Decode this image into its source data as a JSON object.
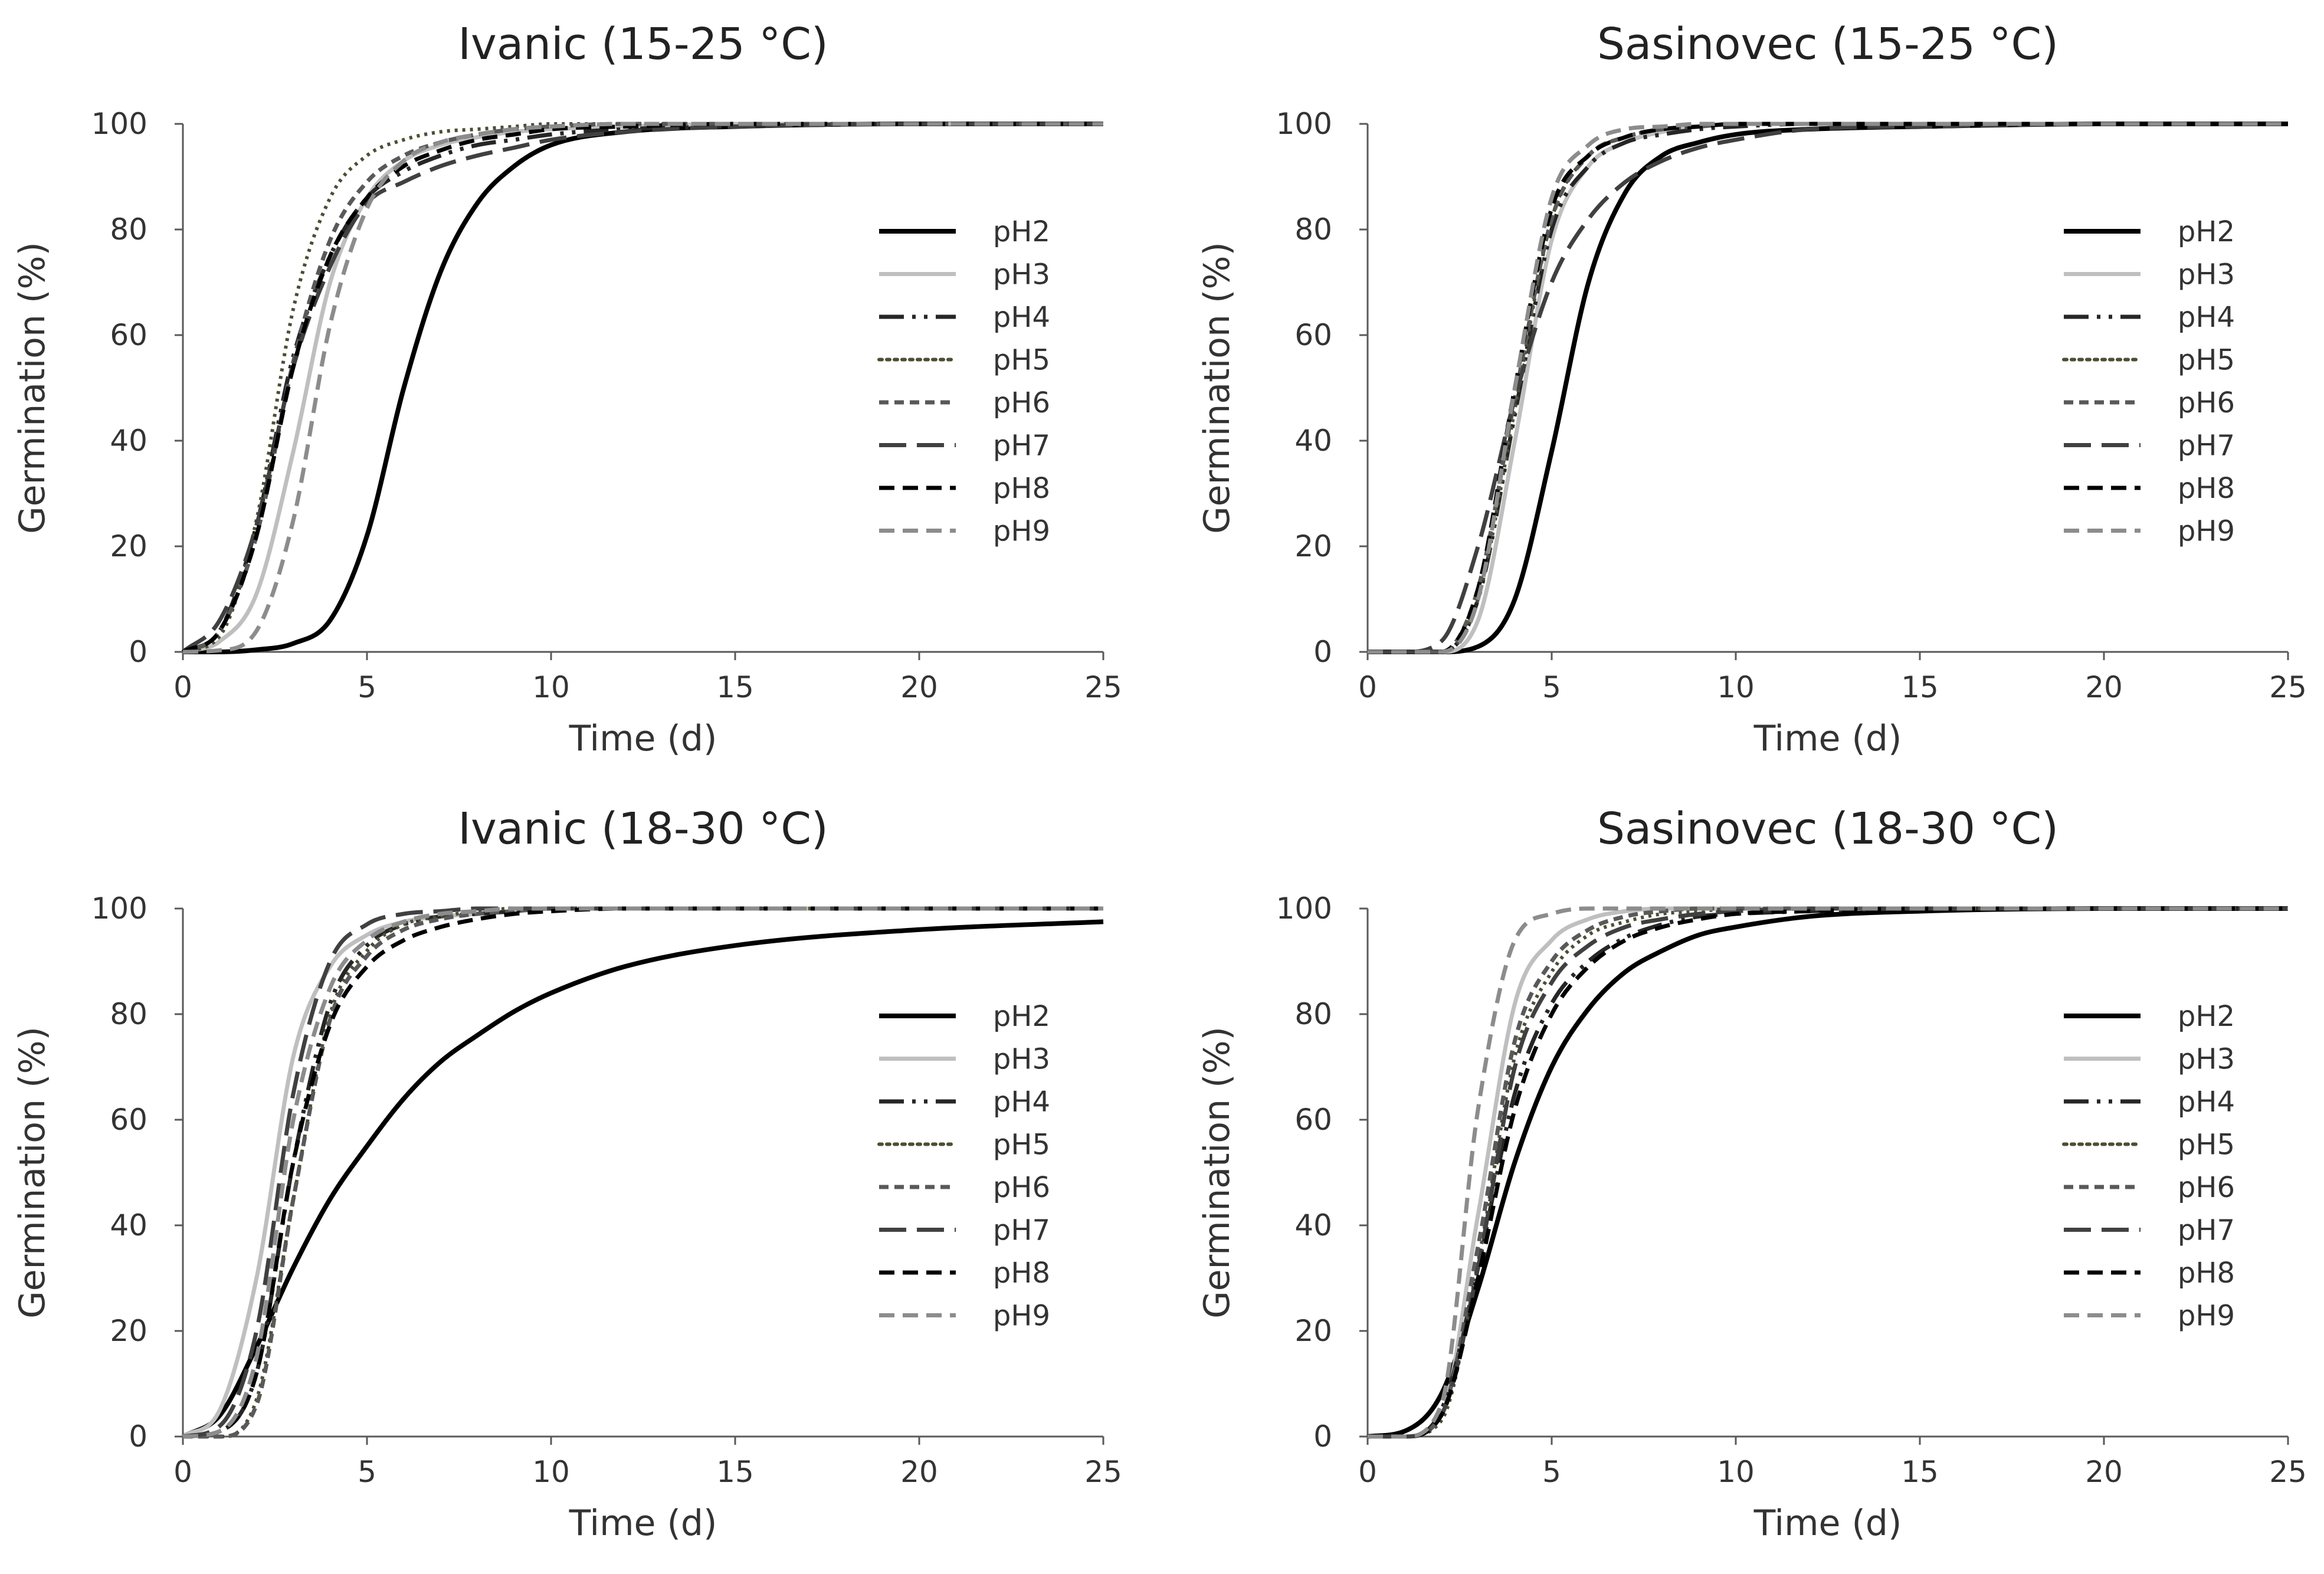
{
  "figure": {
    "layout": "2x2 grid",
    "series_styles": [
      {
        "name": "pH2",
        "color": "#000000",
        "dash": "solid"
      },
      {
        "name": "pH3",
        "color": "#bfbfbf",
        "dash": "solid"
      },
      {
        "name": "pH4",
        "color": "#262626",
        "dash": "long-dash-dot-dot"
      },
      {
        "name": "pH5",
        "color": "#4d4d33",
        "dash": "dotted"
      },
      {
        "name": "pH6",
        "color": "#595959",
        "dash": "short-dash"
      },
      {
        "name": "pH7",
        "color": "#404040",
        "dash": "long-dash"
      },
      {
        "name": "pH8",
        "color": "#000000",
        "dash": "dash"
      },
      {
        "name": "pH9",
        "color": "#8c8c8c",
        "dash": "dash"
      }
    ]
  },
  "chart_data": [
    {
      "type": "line",
      "title": "Ivanic (15-25 °C)",
      "xlabel": "Time (d)",
      "ylabel": "Germination (%)",
      "xlim": [
        0,
        25
      ],
      "ylim": [
        0,
        100
      ],
      "xticks": [
        0,
        5,
        10,
        15,
        20,
        25
      ],
      "yticks": [
        0,
        20,
        40,
        60,
        80,
        100
      ],
      "legend_position": "right",
      "x": [
        0,
        1,
        2,
        3,
        4,
        5,
        6,
        7,
        8,
        9,
        10,
        12,
        15,
        20,
        25
      ],
      "series": [
        {
          "name": "pH2",
          "values": [
            0,
            0,
            0.4,
            1.6,
            6,
            22,
            50,
            72,
            85,
            92,
            96,
            98.5,
            99.5,
            100,
            100
          ]
        },
        {
          "name": "pH3",
          "values": [
            0,
            2,
            11,
            38,
            70,
            86,
            93,
            96,
            97.5,
            98.5,
            99,
            99.5,
            100,
            100,
            100
          ]
        },
        {
          "name": "pH4",
          "values": [
            0,
            4,
            24,
            56,
            75,
            86,
            91,
            94,
            96,
            97,
            98,
            99,
            99.5,
            100,
            100
          ]
        },
        {
          "name": "pH5",
          "values": [
            0,
            3,
            25,
            65,
            86,
            94,
            97,
            98.5,
            99,
            99.5,
            100,
            100,
            100,
            100,
            100
          ]
        },
        {
          "name": "pH6",
          "values": [
            0,
            4,
            22,
            55,
            78,
            89,
            94,
            96.5,
            98,
            99,
            99.5,
            100,
            100,
            100,
            100
          ]
        },
        {
          "name": "pH7",
          "values": [
            0,
            6,
            24,
            54,
            73,
            85,
            89,
            92,
            94,
            95.5,
            97,
            98.5,
            99.5,
            100,
            100
          ]
        },
        {
          "name": "pH8",
          "values": [
            0,
            4,
            22,
            54,
            75,
            86,
            92,
            95,
            97,
            98,
            99,
            99.5,
            100,
            100,
            100
          ]
        },
        {
          "name": "pH9",
          "values": [
            0,
            0.3,
            4,
            25,
            62,
            84,
            93,
            96.5,
            98,
            99,
            99.5,
            100,
            100,
            100,
            100
          ]
        }
      ]
    },
    {
      "type": "line",
      "title": "Sasinovec (15-25 °C)",
      "xlabel": "Time (d)",
      "ylabel": "Germination (%)",
      "xlim": [
        0,
        25
      ],
      "ylim": [
        0,
        100
      ],
      "xticks": [
        0,
        5,
        10,
        15,
        20,
        25
      ],
      "yticks": [
        0,
        20,
        40,
        60,
        80,
        100
      ],
      "legend_position": "right",
      "x": [
        0,
        1,
        2,
        3,
        4,
        5,
        6,
        7,
        8,
        9,
        10,
        12,
        15,
        20,
        25
      ],
      "series": [
        {
          "name": "pH2",
          "values": [
            0,
            0,
            0,
            1,
            10,
            38,
            70,
            87,
            94,
            96.5,
            98,
            99,
            99.5,
            100,
            100
          ]
        },
        {
          "name": "pH3",
          "values": [
            0,
            0,
            0,
            6,
            40,
            78,
            92,
            96.5,
            98.5,
            99.5,
            100,
            100,
            100,
            100,
            100
          ]
        },
        {
          "name": "pH4",
          "values": [
            0,
            0,
            0,
            10,
            45,
            80,
            92,
            96.5,
            98,
            99,
            99.5,
            100,
            100,
            100,
            100
          ]
        },
        {
          "name": "pH5",
          "values": [
            0,
            0,
            0,
            10,
            46,
            82,
            94,
            97.5,
            99,
            99.5,
            100,
            100,
            100,
            100,
            100
          ]
        },
        {
          "name": "pH6",
          "values": [
            0,
            0,
            0,
            12,
            48,
            82,
            94,
            97.5,
            99,
            99.5,
            100,
            100,
            100,
            100,
            100
          ]
        },
        {
          "name": "pH7",
          "values": [
            0,
            0,
            2,
            20,
            48,
            70,
            82,
            89,
            93,
            95.5,
            97,
            99,
            99.5,
            100,
            100
          ]
        },
        {
          "name": "pH8",
          "values": [
            0,
            0,
            0,
            12,
            50,
            84,
            94,
            97.5,
            99,
            99.5,
            100,
            100,
            100,
            100,
            100
          ]
        },
        {
          "name": "pH9",
          "values": [
            0,
            0,
            0,
            10,
            50,
            86,
            96,
            99,
            99.5,
            100,
            100,
            100,
            100,
            100,
            100
          ]
        }
      ]
    },
    {
      "type": "line",
      "title": "Ivanic (18-30 °C)",
      "xlabel": "Time (d)",
      "ylabel": "Germination (%)",
      "xlim": [
        0,
        25
      ],
      "ylim": [
        0,
        100
      ],
      "xticks": [
        0,
        5,
        10,
        15,
        20,
        25
      ],
      "yticks": [
        0,
        20,
        40,
        60,
        80,
        100
      ],
      "legend_position": "right",
      "x": [
        0,
        1,
        2,
        3,
        4,
        5,
        6,
        7,
        8,
        9,
        10,
        12,
        15,
        20,
        25
      ],
      "series": [
        {
          "name": "pH2",
          "values": [
            0,
            4,
            17,
            32,
            45,
            55,
            64,
            71,
            76,
            80.5,
            84,
            89,
            93,
            96,
            97.5
          ]
        },
        {
          "name": "pH3",
          "values": [
            0,
            5,
            30,
            72,
            89,
            95,
            97.5,
            98.5,
            99,
            99.5,
            100,
            100,
            100,
            100,
            100
          ]
        },
        {
          "name": "pH4",
          "values": [
            0,
            1,
            12,
            52,
            82,
            93,
            97,
            98.5,
            99,
            99.5,
            100,
            100,
            100,
            100,
            100
          ]
        },
        {
          "name": "pH5",
          "values": [
            0,
            0,
            7,
            45,
            80,
            92,
            97,
            98.5,
            99.5,
            100,
            100,
            100,
            100,
            100,
            100
          ]
        },
        {
          "name": "pH6",
          "values": [
            0,
            0,
            6,
            45,
            79,
            91,
            96,
            98,
            99,
            99.5,
            100,
            100,
            100,
            100,
            100
          ]
        },
        {
          "name": "pH7",
          "values": [
            0,
            2,
            20,
            65,
            90,
            97,
            99,
            99.5,
            100,
            100,
            100,
            100,
            100,
            100,
            100
          ]
        },
        {
          "name": "pH8",
          "values": [
            0,
            1,
            12,
            52,
            78,
            89,
            94,
            96.5,
            98,
            99,
            99.5,
            100,
            100,
            100,
            100
          ]
        },
        {
          "name": "pH9",
          "values": [
            0,
            1,
            15,
            60,
            85,
            94,
            97.5,
            99,
            99.5,
            100,
            100,
            100,
            100,
            100,
            100
          ]
        }
      ]
    },
    {
      "type": "line",
      "title": "Sasinovec (18-30 °C)",
      "xlabel": "Time (d)",
      "ylabel": "Germination (%)",
      "xlim": [
        0,
        25
      ],
      "ylim": [
        0,
        100
      ],
      "xticks": [
        0,
        5,
        10,
        15,
        20,
        25
      ],
      "yticks": [
        0,
        20,
        40,
        60,
        80,
        100
      ],
      "legend_position": "right",
      "x": [
        0,
        1,
        2,
        3,
        4,
        5,
        6,
        7,
        8,
        9,
        10,
        12,
        15,
        20,
        25
      ],
      "series": [
        {
          "name": "pH2",
          "values": [
            0,
            1,
            8,
            28,
            52,
            70,
            81,
            88,
            92,
            95,
            96.5,
            98.5,
            99.5,
            100,
            100
          ]
        },
        {
          "name": "pH3",
          "values": [
            0,
            0,
            4,
            42,
            82,
            94,
            98,
            99.5,
            100,
            100,
            100,
            100,
            100,
            100,
            100
          ]
        },
        {
          "name": "pH4",
          "values": [
            0,
            0,
            5,
            32,
            65,
            82,
            90,
            94.5,
            97,
            98.5,
            99,
            99.5,
            100,
            100,
            100
          ]
        },
        {
          "name": "pH5",
          "values": [
            0,
            0,
            3,
            33,
            72,
            88,
            95,
            97.5,
            99,
            99.5,
            100,
            100,
            100,
            100,
            100
          ]
        },
        {
          "name": "pH6",
          "values": [
            0,
            0,
            4,
            36,
            75,
            90,
            96,
            98.5,
            99.5,
            100,
            100,
            100,
            100,
            100,
            100
          ]
        },
        {
          "name": "pH7",
          "values": [
            0,
            0,
            4,
            32,
            70,
            86,
            93,
            96.5,
            98,
            99,
            99.5,
            100,
            100,
            100,
            100
          ]
        },
        {
          "name": "pH8",
          "values": [
            0,
            0,
            4,
            30,
            62,
            80,
            89,
            94,
            96.5,
            98,
            99,
            99.5,
            100,
            100,
            100
          ]
        },
        {
          "name": "pH9",
          "values": [
            0,
            0,
            6,
            62,
            94,
            99,
            100,
            100,
            100,
            100,
            100,
            100,
            100,
            100,
            100
          ]
        }
      ]
    }
  ]
}
